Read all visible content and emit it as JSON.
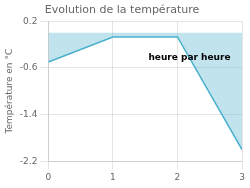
{
  "chart_data": {
    "type": "area",
    "title": "Evolution de la température",
    "y_label": "Température en °C",
    "x": [
      0,
      1,
      2,
      3
    ],
    "values": [
      -0.5,
      -0.07,
      -0.07,
      -2.0
    ],
    "color": "#4ab0cc",
    "xlim": [
      0,
      3
    ],
    "ylim": [
      -2.2,
      0.2
    ],
    "xticks": [
      0,
      1,
      2,
      3
    ],
    "yticks": [
      0.2,
      -0.6,
      -1.4,
      -2.2
    ],
    "grid": true,
    "annotations": [
      {
        "text": "heure par heure",
        "x": 1.55,
        "y": -0.35
      }
    ]
  }
}
